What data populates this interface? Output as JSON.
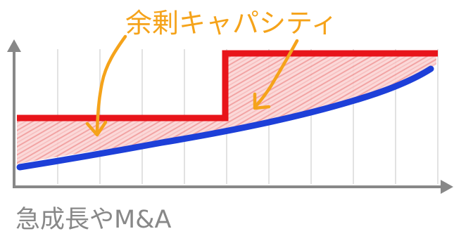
{
  "callout": {
    "label": "余剰キャパシティ"
  },
  "caption": {
    "label": "急成長やM&A"
  },
  "colors": {
    "capacity_line": "#e8141a",
    "demand_line": "#1d3fd8",
    "surplus_fill": "#f8c8c8",
    "surplus_hatch": "#f08080",
    "callout": "#f5a31a",
    "axes": "#888888",
    "grid": "#d9d9d9"
  },
  "legend": {
    "capacity_line": "red step line",
    "demand_line": "blue rising curve",
    "surplus_region": "red hatched area between the lines"
  }
}
